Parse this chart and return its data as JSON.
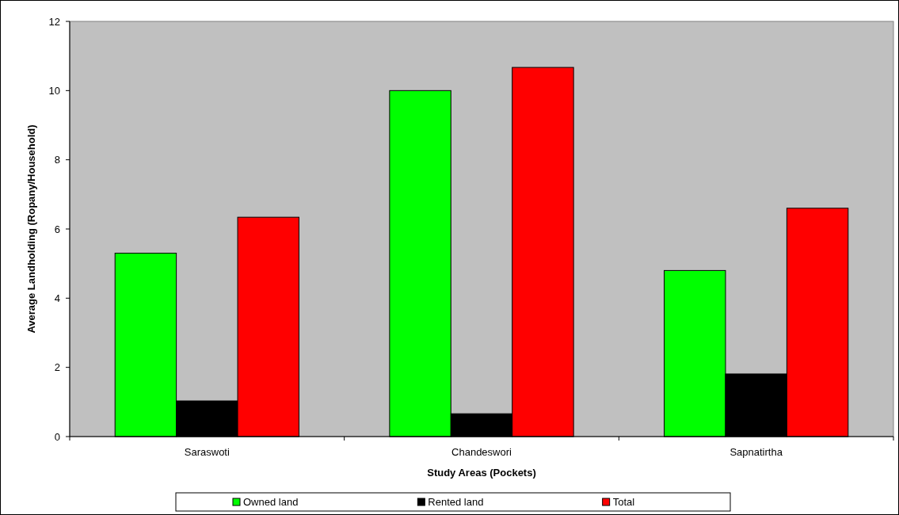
{
  "chart_data": {
    "type": "bar",
    "xlabel": "Study Areas (Pockets)",
    "ylabel": "Average Landholding (Ropany/Household)",
    "categories": [
      "Saraswoti",
      "Chandeswori",
      "Sapnatirtha"
    ],
    "series": [
      {
        "name": "Owned land",
        "color": "#00ff00",
        "values": [
          5.3,
          10.0,
          4.8
        ]
      },
      {
        "name": "Rented land",
        "color": "#000000",
        "values": [
          1.03,
          0.66,
          1.81
        ]
      },
      {
        "name": "Total",
        "color": "#ff0000",
        "values": [
          6.34,
          10.67,
          6.6
        ]
      }
    ],
    "ylim": [
      0,
      12
    ],
    "yticks": [
      0,
      2,
      4,
      6,
      8,
      10,
      12
    ],
    "grid": false,
    "legend": "bottom"
  }
}
